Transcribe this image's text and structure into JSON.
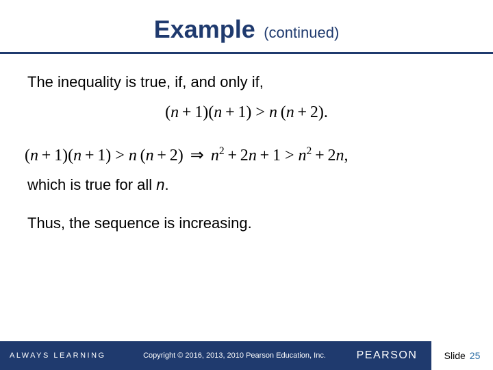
{
  "colors": {
    "title_text": "#1f3a6e",
    "title_rule": "#1f3a6e",
    "footer_bg": "#1f3a6e",
    "footer_text": "#ffffff",
    "slide_num": "#2e6fa6",
    "body_text": "#000000"
  },
  "title": {
    "main": "Example",
    "main_fontsize": 36,
    "sub": "(continued)",
    "sub_fontsize": 22
  },
  "body": {
    "line1": "The inequality is true, if, and only if,",
    "line2_prefix": "which is true for all ",
    "line2_var": "n",
    "line2_suffix": ".",
    "line3": "Thus, the sequence is increasing."
  },
  "footer": {
    "tagline": "ALWAYS LEARNING",
    "copyright": "Copyright © 2016, 2013, 2010 Pearson Education, Inc.",
    "brand": "PEARSON",
    "slide_label": "Slide",
    "slide_number": "25"
  }
}
